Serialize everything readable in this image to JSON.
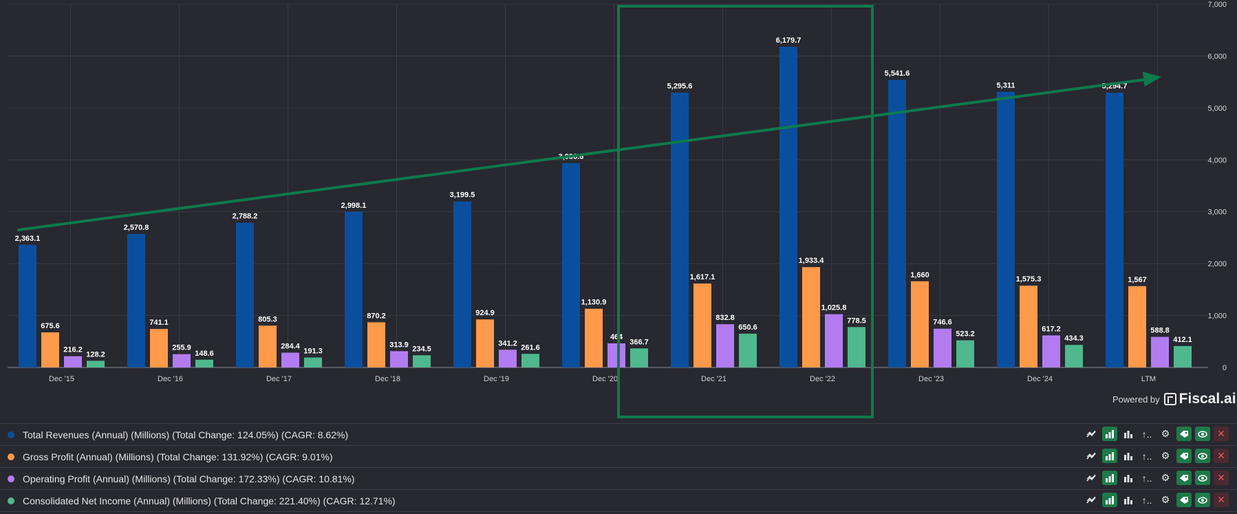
{
  "colors": {
    "background": "#282830",
    "grid": "#3a3a44",
    "revenue": "#0a4f9e",
    "gross": "#ff9a4a",
    "operating": "#b27cf0",
    "net": "#4fb88e",
    "trend": "#0e7a4c",
    "highlight": "#0e7a4c"
  },
  "chart_data": {
    "type": "bar",
    "categories": [
      "Dec '15",
      "Dec '16",
      "Dec '17",
      "Dec '18",
      "Dec '19",
      "Dec '20",
      "Dec '21",
      "Dec '22",
      "Dec '23",
      "Dec '24",
      "LTM"
    ],
    "series": [
      {
        "name": "Total Revenues (Annual) (Millions)",
        "values": [
          2363.1,
          2570.8,
          2788.2,
          2998.1,
          3199.5,
          3936.6,
          5295.6,
          6179.7,
          5541.6,
          5311,
          5294.7
        ],
        "labels": [
          "2,363.1",
          "2,570.8",
          "2,788.2",
          "2,998.1",
          "3,199.5",
          "3,936.6",
          "5,295.6",
          "6,179.7",
          "5,541.6",
          "5,311",
          "5,294.7"
        ]
      },
      {
        "name": "Gross Profit (Annual) (Millions)",
        "values": [
          675.6,
          741.1,
          805.3,
          870.2,
          924.9,
          1130.9,
          1617.1,
          1933.4,
          1660,
          1575.3,
          1567
        ],
        "labels": [
          "675.6",
          "741.1",
          "805.3",
          "870.2",
          "924.9",
          "1,130.9",
          "1,617.1",
          "1,933.4",
          "1,660",
          "1,575.3",
          "1,567"
        ]
      },
      {
        "name": "Operating Profit (Annual) (Millions)",
        "values": [
          216.2,
          255.9,
          284.4,
          313.9,
          341.2,
          464,
          832.8,
          1025.8,
          746.6,
          617.2,
          588.8
        ],
        "labels": [
          "216.2",
          "255.9",
          "284.4",
          "313.9",
          "341.2",
          "464",
          "832.8",
          "1,025.8",
          "746.6",
          "617.2",
          "588.8"
        ]
      },
      {
        "name": "Consolidated Net Income (Annual) (Millions)",
        "values": [
          128.2,
          148.6,
          191.3,
          234.5,
          261.6,
          366.7,
          650.6,
          778.5,
          523.2,
          434.3,
          412.1
        ],
        "labels": [
          "128.2",
          "148.6",
          "191.3",
          "234.5",
          "261.6",
          "366.7",
          "650.6",
          "778.5",
          "523.2",
          "434.3",
          "412.1"
        ]
      }
    ],
    "ylim": [
      0,
      7000
    ],
    "yticks": [
      0,
      1000,
      2000,
      3000,
      4000,
      5000,
      6000,
      7000
    ],
    "ytick_labels": [
      "0",
      "1,000",
      "2,000",
      "3,000",
      "4,000",
      "5,000",
      "6,000",
      "7,000"
    ],
    "grid": true,
    "annotations": {
      "trend_arrow": {
        "from_category": "Dec '15",
        "from_value": 2650,
        "to_category": "LTM",
        "to_value": 5600
      },
      "highlight_box": {
        "categories": [
          "Dec '21",
          "Dec '22"
        ]
      }
    }
  },
  "branding": {
    "powered_by": "Powered by",
    "brand": "Fiscal.ai"
  },
  "legend": [
    {
      "label": "Total Revenues (Annual) (Millions) (Total Change: 124.05%) (CAGR: 8.62%)",
      "color": "#0a4f9e"
    },
    {
      "label": "Gross Profit (Annual) (Millions) (Total Change: 131.92%) (CAGR: 9.01%)",
      "color": "#ff9a4a"
    },
    {
      "label": "Operating Profit (Annual) (Millions) (Total Change: 172.33%) (CAGR: 10.81%)",
      "color": "#b27cf0"
    },
    {
      "label": "Consolidated Net Income (Annual) (Millions) (Total Change: 221.40%) (CAGR: 12.71%)",
      "color": "#4fb88e"
    }
  ],
  "tool_icons": [
    "line-chart-icon",
    "bar-chart-icon",
    "stacked-bar-icon",
    "sort-icon",
    "gear-icon",
    "tag-icon",
    "eye-icon",
    "close-icon"
  ],
  "tool_glyphs": {
    "sort": "↑..",
    "gear": "⚙",
    "close": "✕"
  }
}
